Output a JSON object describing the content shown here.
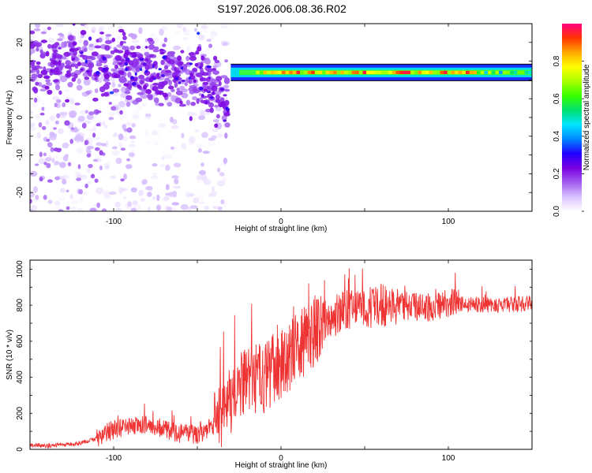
{
  "title": "S197.2026.006.08.36.R02",
  "chart_data": [
    {
      "type": "heatmap",
      "xlabel": "Height of straight line (km)",
      "ylabel": "Frequency (Hz)",
      "xlim": [
        -150,
        150
      ],
      "ylim": [
        -25,
        25
      ],
      "xticks": [
        -100,
        0,
        100
      ],
      "yticks": [
        -20,
        -10,
        0,
        10,
        20
      ],
      "colorbar": {
        "label": "Normalized spectral amplitude",
        "ticks": [
          "0.0",
          "0.2",
          "0.4",
          "0.6",
          "0.8"
        ],
        "range": [
          0,
          1
        ],
        "colors": [
          "#ffffff",
          "#d9c2ff",
          "#a15cf0",
          "#7a00e0",
          "#2200ff",
          "#0088ff",
          "#00e5ff",
          "#00e070",
          "#38ff00",
          "#aaff00",
          "#ffff00",
          "#ffaa00",
          "#ff3300",
          "#ff0080"
        ]
      },
      "features": {
        "stable_line_frequency_hz": 12,
        "stable_line_start_km": -30,
        "scatter_region_km": [
          -150,
          -35
        ],
        "scatter_center_freq_hz": 15
      }
    },
    {
      "type": "line",
      "xlabel": "Height of straight line (km)",
      "ylabel": "SNR (10 * v/v)",
      "xlim": [
        -150,
        150
      ],
      "ylim": [
        0,
        1050
      ],
      "xticks": [
        -100,
        0,
        100
      ],
      "yticks": [
        0,
        200,
        400,
        600,
        800,
        1000
      ],
      "series": [
        {
          "name": "SNR",
          "color": "#ee3333",
          "x": [
            -150,
            -140,
            -130,
            -120,
            -110,
            -100,
            -90,
            -80,
            -70,
            -60,
            -50,
            -40,
            -35,
            -30,
            -25,
            -20,
            -10,
            0,
            10,
            20,
            30,
            40,
            50,
            60,
            70,
            80,
            90,
            100,
            110,
            120,
            130,
            140,
            150
          ],
          "y": [
            25,
            20,
            25,
            35,
            60,
            110,
            120,
            140,
            110,
            90,
            85,
            130,
            180,
            280,
            330,
            370,
            400,
            480,
            560,
            660,
            740,
            770,
            790,
            800,
            800,
            790,
            790,
            810,
            810,
            805,
            800,
            805,
            810
          ]
        }
      ]
    }
  ]
}
